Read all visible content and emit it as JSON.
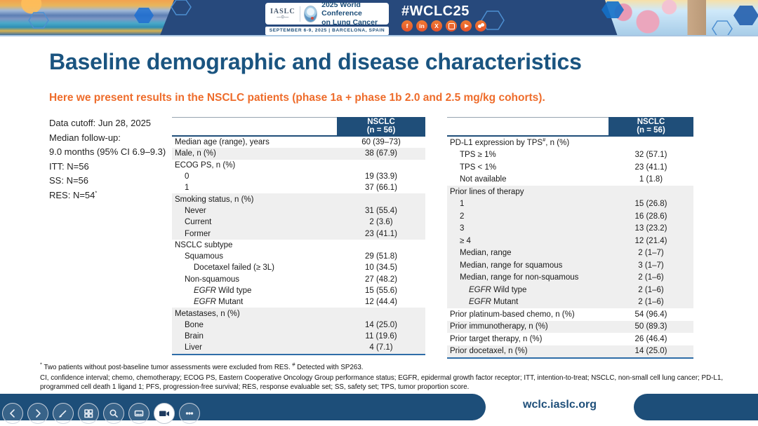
{
  "colors": {
    "banner_bg": "#27497c",
    "navy": "#1d4e79",
    "table_header_bg": "#1f4e79",
    "title_blue": "#1a5480",
    "subtitle_orange": "#ee6c2b",
    "row_shade": "#efefef",
    "social_orange": "#e6512a"
  },
  "banner": {
    "badge": {
      "org": "IASLC",
      "org_glyph": "—⊙—",
      "conference_line1": "2025 World Conference",
      "conference_line2": "on Lung Cancer",
      "date_location": "SEPTEMBER 6-9, 2025   |   BARCELONA, SPAIN"
    },
    "hashtag": "#WCLC25",
    "social_icons": [
      "facebook-icon",
      "linkedin-icon",
      "x-icon",
      "instagram-icon",
      "youtube-icon",
      "community-icon"
    ],
    "facebook_glyph": "f",
    "linkedin_glyph": "in",
    "x_glyph": "X"
  },
  "slide": {
    "title": "Baseline demographic and disease characteristics",
    "subtitle": "Here we present results in the NSCLC patients (phase 1a + phase 1b 2.0 and 2.5 mg/kg cohorts).",
    "info_panel": {
      "lines": [
        "Data cutoff: Jun 28, 2025",
        "Median follow-up:",
        "9.0 months (95% CI 6.9–9.3)",
        "ITT: N=56",
        "SS: N=56"
      ],
      "res_line": {
        "text": "RES: N=54",
        "sup": "*"
      }
    }
  },
  "tables": {
    "left": {
      "header": {
        "label": "",
        "value_line1": "NSCLC",
        "value_line2": "(n = 56)"
      },
      "rows": [
        {
          "label": "Median age (range), years",
          "value": "60 (39–73)",
          "indent": 0,
          "shade": false
        },
        {
          "label": "Male, n (%)",
          "value": "38 (67.9)",
          "indent": 0,
          "shade": true
        },
        {
          "label": "ECOG PS, n (%)",
          "value": "",
          "indent": 0,
          "shade": false
        },
        {
          "label": "0",
          "value": "19 (33.9)",
          "indent": 1,
          "shade": false
        },
        {
          "label": "1",
          "value": "37 (66.1)",
          "indent": 1,
          "shade": false
        },
        {
          "label": "Smoking status, n (%)",
          "value": "",
          "indent": 0,
          "shade": true
        },
        {
          "label": "Never",
          "value": "31 (55.4)",
          "indent": 1,
          "shade": true
        },
        {
          "label": "Current",
          "value": "2 (3.6)",
          "indent": 1,
          "shade": true
        },
        {
          "label": "Former",
          "value": "23 (41.1)",
          "indent": 1,
          "shade": true
        },
        {
          "label": "NSCLC subtype",
          "value": "",
          "indent": 0,
          "shade": false
        },
        {
          "label": "Squamous",
          "value": "29 (51.8)",
          "indent": 1,
          "shade": false
        },
        {
          "label": "Docetaxel failed (≥ 3L)",
          "value": "10 (34.5)",
          "indent": 2,
          "shade": false
        },
        {
          "label": "Non-squamous",
          "value": "27 (48.2)",
          "indent": 1,
          "shade": false
        },
        {
          "em": "EGFR",
          "label": " Wild type",
          "value": "15 (55.6)",
          "indent": 2,
          "shade": false
        },
        {
          "em": "EGFR",
          "label": " Mutant",
          "value": "12 (44.4)",
          "indent": 2,
          "shade": false
        },
        {
          "label": "Metastases, n (%)",
          "value": "",
          "indent": 0,
          "shade": true
        },
        {
          "label": "Bone",
          "value": "14 (25.0)",
          "indent": 1,
          "shade": true
        },
        {
          "label": "Brain",
          "value": "11 (19.6)",
          "indent": 1,
          "shade": true
        },
        {
          "label": "Liver",
          "value": "4 (7.1)",
          "indent": 1,
          "shade": true
        }
      ]
    },
    "right": {
      "header": {
        "label": "",
        "value_line1": "NSCLC",
        "value_line2": "(n = 56)"
      },
      "rows": [
        {
          "label": "PD-L1 expression by TPS",
          "sup": "#",
          "post": ", n (%)",
          "value": "",
          "indent": 0,
          "shade": false
        },
        {
          "label": "TPS ≥ 1%",
          "value": "32 (57.1)",
          "indent": 1,
          "shade": false
        },
        {
          "label": "TPS < 1%",
          "value": "23 (41.1)",
          "indent": 1,
          "shade": false
        },
        {
          "label": "Not available",
          "value": "1 (1.8)",
          "indent": 1,
          "shade": false
        },
        {
          "label": "Prior lines of therapy",
          "value": "",
          "indent": 0,
          "shade": true
        },
        {
          "label": "1",
          "value": "15 (26.8)",
          "indent": 1,
          "shade": true
        },
        {
          "label": "2",
          "value": "16 (28.6)",
          "indent": 1,
          "shade": true
        },
        {
          "label": "3",
          "value": "13 (23.2)",
          "indent": 1,
          "shade": true
        },
        {
          "label": "≥ 4",
          "value": "12 (21.4)",
          "indent": 1,
          "shade": true
        },
        {
          "label": "Median, range",
          "value": "2 (1–7)",
          "indent": 1,
          "shade": true
        },
        {
          "label": "Median, range for squamous",
          "value": "3 (1–7)",
          "indent": 1,
          "shade": true
        },
        {
          "label": "Median, range for non-squamous",
          "value": "2 (1–6)",
          "indent": 1,
          "shade": true
        },
        {
          "em": "EGFR",
          "label": " Wild type",
          "value": "2 (1–6)",
          "indent": 2,
          "shade": true
        },
        {
          "em": "EGFR",
          "label": " Mutant",
          "value": "2 (1–6)",
          "indent": 2,
          "shade": true
        },
        {
          "label": "Prior platinum-based chemo, n (%)",
          "value": "54 (96.4)",
          "indent": 0,
          "shade": false
        },
        {
          "label": "Prior immunotherapy, n (%)",
          "value": "50 (89.3)",
          "indent": 0,
          "shade": true
        },
        {
          "label": "Prior target therapy, n (%)",
          "value": "26 (46.4)",
          "indent": 0,
          "shade": false
        },
        {
          "label": "Prior docetaxel, n (%)",
          "value": "14 (25.0)",
          "indent": 0,
          "shade": true
        }
      ]
    }
  },
  "footnotes": {
    "sym1": "*",
    "text1": " Two patients without post-baseline tumor assessments were excluded from RES. ",
    "sym2": "#",
    "text2": " Detected with SP263.",
    "abbreviations": "CI, confidence interval; chemo, chemotherapy; ECOG PS, Eastern Cooperative Oncology Group performance status; EGFR, epidermal growth factor receptor; ITT, intention-to-treat; NSCLC, non-small cell lung cancer; PD-L1, programmed cell death 1 ligand 1; PFS, progression-free survival; RES, response evaluable set; SS, safety set; TPS, tumor proportion score."
  },
  "footer": {
    "url": "wclc.iaslc.org"
  },
  "toolbar": {
    "buttons": [
      "previous",
      "next",
      "draw",
      "slide-sorter",
      "zoom",
      "captions",
      "camera",
      "more"
    ]
  }
}
